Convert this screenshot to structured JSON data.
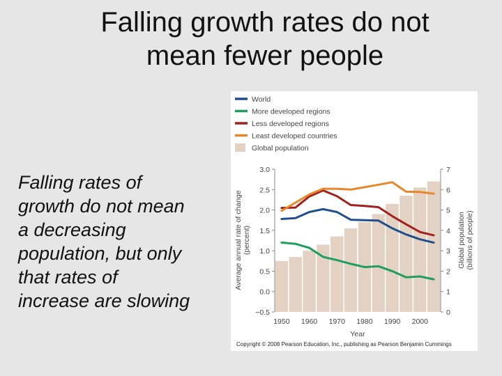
{
  "slide": {
    "title_line1": "Falling growth rates do not",
    "title_line2": "mean fewer people",
    "body_lines": [
      "Falling rates of",
      "growth do not mean",
      "a decreasing",
      "population, but only",
      "that rates of",
      "increase are slowing"
    ]
  },
  "chart_data": {
    "type": "line",
    "x": [
      1950,
      1955,
      1960,
      1965,
      1970,
      1975,
      1980,
      1985,
      1990,
      1995,
      2000,
      2005
    ],
    "xlabel": "Year",
    "x_ticks": [
      "1950",
      "1960",
      "1970",
      "1980",
      "1990",
      "2000"
    ],
    "ylabel_line1": "Average annual rate of change",
    "ylabel_line2": "(percent)",
    "ylim": [
      -0.5,
      3.0
    ],
    "y_ticks": [
      "3.0",
      "2.5",
      "2.0",
      "1.5",
      "1.0",
      "0.5",
      "0.0",
      "−0.5"
    ],
    "y2label_line1": "Global population",
    "y2label_line2": "(billions of people)",
    "y2lim": [
      0,
      7
    ],
    "y2_ticks": [
      "7",
      "6",
      "5",
      "4",
      "3",
      "2",
      "1",
      "0"
    ],
    "series": [
      {
        "name": "World",
        "color": "#1f4e8c",
        "values": [
          1.78,
          1.8,
          1.95,
          2.02,
          1.95,
          1.76,
          1.75,
          1.74,
          1.55,
          1.4,
          1.28,
          1.2
        ]
      },
      {
        "name": "More developed regions",
        "color": "#1e9e5a",
        "values": [
          1.2,
          1.17,
          1.07,
          0.85,
          0.77,
          0.68,
          0.6,
          0.62,
          0.5,
          0.35,
          0.37,
          0.3
        ]
      },
      {
        "name": "Less developed regions",
        "color": "#a3201d",
        "values": [
          2.05,
          2.06,
          2.33,
          2.48,
          2.34,
          2.12,
          2.1,
          2.07,
          1.85,
          1.65,
          1.46,
          1.38
        ]
      },
      {
        "name": "Least developed countries",
        "color": "#e8862a",
        "values": [
          1.98,
          2.18,
          2.38,
          2.52,
          2.52,
          2.5,
          2.56,
          2.62,
          2.68,
          2.45,
          2.44,
          2.4
        ]
      }
    ],
    "bars": {
      "name": "Global population",
      "color": "#e3d2c3",
      "values": [
        2.5,
        2.7,
        3.0,
        3.3,
        3.7,
        4.1,
        4.4,
        4.8,
        5.3,
        5.7,
        6.1,
        6.4
      ]
    },
    "legend_position": "top-left",
    "grid": false,
    "copyright": "Copyright © 2008 Pearson Education, Inc., publishing as Pearson Benjamin Cummings"
  }
}
